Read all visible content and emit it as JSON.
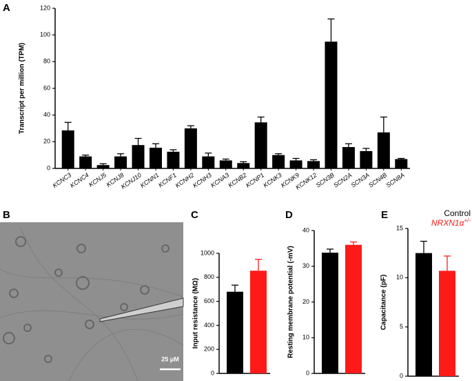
{
  "chart_data": [
    {
      "type": "bar",
      "panel_label": "A",
      "ylabel": "Transcript per million (TPM)",
      "categories": [
        "KCNC3",
        "KCNC4",
        "KCNJ5",
        "KCNJ8",
        "KCNJ10",
        "KCNN1",
        "KCNF1",
        "KCNH2",
        "KCNH3",
        "KCNA3",
        "KCNB2",
        "KCNP1",
        "KCNK3",
        "KCNK9",
        "KCNK12",
        "SCN3B",
        "SCN2A",
        "SCN3A",
        "SCN4B",
        "SCN8A"
      ],
      "values": [
        28.5,
        9,
        2.5,
        9,
        17.5,
        15.5,
        12.5,
        30,
        9,
        6,
        4,
        34.5,
        10,
        6,
        5.5,
        95,
        16,
        13,
        27,
        7
      ],
      "errors": [
        6,
        1,
        1,
        2,
        5,
        3,
        1.5,
        2,
        2.5,
        1,
        1,
        4,
        1,
        1.5,
        1,
        17,
        2.5,
        2,
        11.5,
        0.5
      ],
      "color": "#000000",
      "ylim": [
        0,
        120
      ],
      "yticks": [
        0,
        20,
        40,
        60,
        80,
        100,
        120
      ]
    },
    {
      "type": "bar",
      "panel_label": "C",
      "ylabel": "Input resistance (MΩ)",
      "series": [
        {
          "color": "#000000",
          "values": [
            680
          ],
          "errors": [
            55
          ]
        },
        {
          "color": "#ff1a1a",
          "values": [
            855
          ],
          "errors": [
            95
          ]
        }
      ],
      "ylim": [
        0,
        1000
      ],
      "yticks": [
        0,
        200,
        400,
        600,
        800,
        1000
      ]
    },
    {
      "type": "bar",
      "panel_label": "D",
      "ylabel": "Resting membrane potential (-mV)",
      "series": [
        {
          "color": "#000000",
          "values": [
            33.8
          ],
          "errors": [
            1
          ]
        },
        {
          "color": "#ff1a1a",
          "values": [
            36
          ],
          "errors": [
            0.8
          ]
        }
      ],
      "ylim": [
        0,
        40
      ],
      "yticks": [
        0,
        10,
        20,
        30,
        40
      ]
    },
    {
      "type": "bar",
      "panel_label": "E",
      "ylabel": "Capacitance (pF)",
      "series": [
        {
          "name": "Control",
          "color": "#000000",
          "values": [
            12.5
          ],
          "errors": [
            1.2
          ]
        },
        {
          "name": "NRXN1α",
          "name_superscript": "+/-",
          "color": "#ff1a1a",
          "values": [
            10.7
          ],
          "errors": [
            1.5
          ]
        }
      ],
      "ylim": [
        0,
        15
      ],
      "yticks": [
        0,
        5,
        10,
        15
      ]
    }
  ],
  "image_panel": {
    "panel_label": "B",
    "scale_bar_label": "25 μM"
  }
}
